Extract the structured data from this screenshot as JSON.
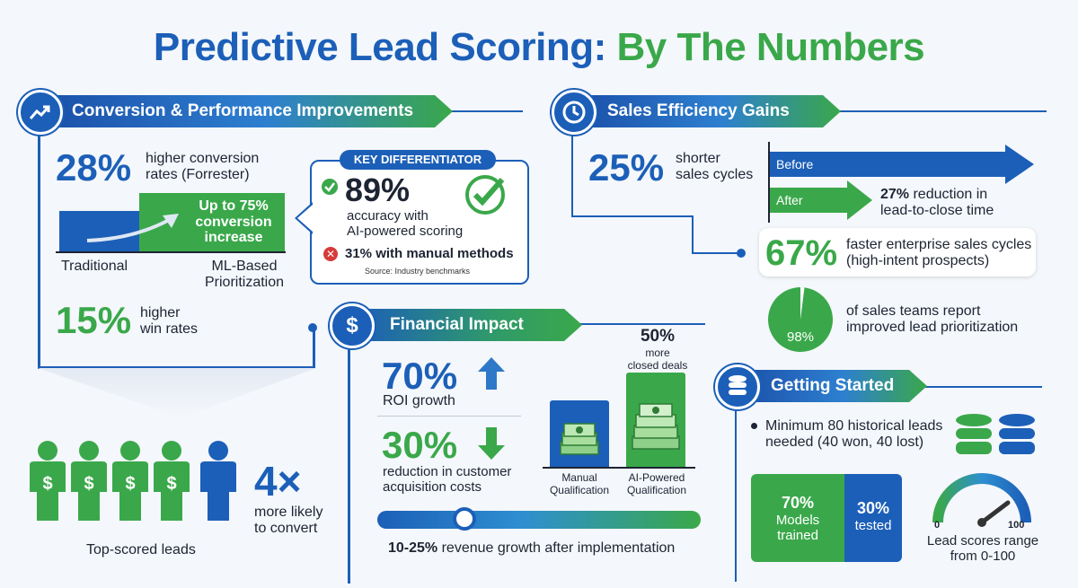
{
  "title": {
    "part1": "Predictive Lead Scoring:",
    "part2": "By The Numbers"
  },
  "conversion": {
    "header": "Conversion & Performance Improvements",
    "stat1_value": "28%",
    "stat1_text_l1": "higher conversion",
    "stat1_text_l2": "rates (Forrester)",
    "bar_callout_l1": "Up to 75%",
    "bar_callout_l2": "conversion",
    "bar_callout_l3": "increase",
    "bar_label_left": "Traditional",
    "bar_label_right_l1": "ML-Based",
    "bar_label_right_l2": "Prioritization",
    "stat2_value": "15%",
    "stat2_text_l1": "higher",
    "stat2_text_l2": "win rates"
  },
  "differentiator": {
    "badge": "KEY DIFFERENTIATOR",
    "value": "89%",
    "text_l1": "accuracy with",
    "text_l2": "AI-powered scoring",
    "manual": "31% with manual methods",
    "source": "Source: Industry benchmarks"
  },
  "leads": {
    "multiplier": "4×",
    "text_l1": "more likely",
    "text_l2": "to convert",
    "caption": "Top-scored leads",
    "person_symbol": "$"
  },
  "financial": {
    "header": "Financial Impact",
    "icon_symbol": "$",
    "roi_value": "70%",
    "roi_text": "ROI growth",
    "cac_value": "30%",
    "cac_text_l1": "reduction in customer",
    "cac_text_l2": "acquisition costs",
    "deals_value": "50%",
    "deals_text_l1": "more",
    "deals_text_l2": "closed deals",
    "bar_manual_l1": "Manual",
    "bar_manual_l2": "Qualification",
    "bar_ai_l1": "AI-Powered",
    "bar_ai_l2": "Qualification",
    "revenue_bold": "10-25%",
    "revenue_text": " revenue growth after implementation"
  },
  "efficiency": {
    "header": "Sales Efficiency Gains",
    "stat_value": "25%",
    "stat_text_l1": "shorter",
    "stat_text_l2": "sales cycles",
    "arrow_before": "Before",
    "arrow_after": "After",
    "reduction_bold": "27%",
    "reduction_l1": " reduction in",
    "reduction_l2": "lead-to-close time",
    "enterprise_value": "67%",
    "enterprise_l1": "faster enterprise sales cycles",
    "enterprise_l2": "(high-intent prospects)",
    "pie_value": "98%",
    "pie_fraction": 0.98,
    "pie_text_l1": "of sales teams report",
    "pie_text_l2": "improved lead prioritization"
  },
  "getting_started": {
    "header": "Getting Started",
    "bullet_l1": "Minimum 80 historical leads",
    "bullet_l2": "needed (40 won, 40 lost)",
    "trained_value": "70%",
    "trained_l1": "Models",
    "trained_l2": "trained",
    "tested_value": "30%",
    "tested_l1": "tested",
    "gauge_min": "0",
    "gauge_max": "100",
    "gauge_text_l1": "Lead scores range",
    "gauge_text_l2": "from 0-100"
  },
  "colors": {
    "blue": "#1c5fb8",
    "green": "#3aa84a"
  }
}
